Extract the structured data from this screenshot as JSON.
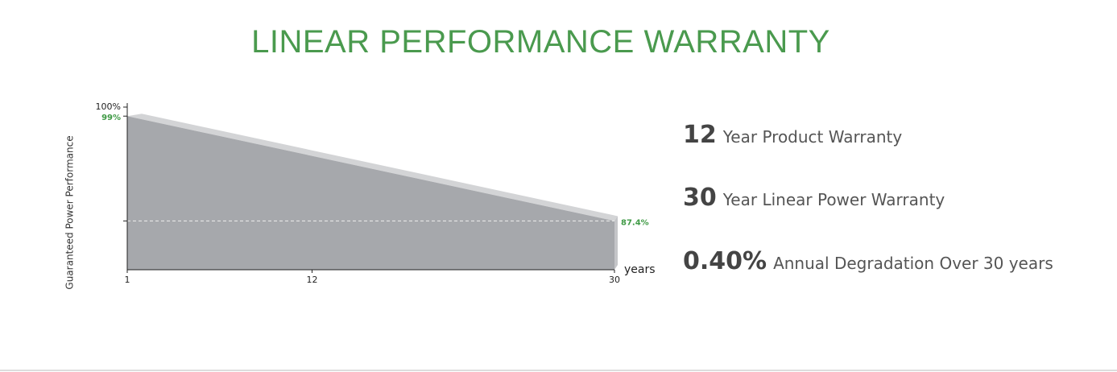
{
  "title": "LINEAR PERFORMANCE WARRANTY",
  "chart_data": {
    "type": "area",
    "x": [
      1,
      30
    ],
    "values": [
      99,
      87.4
    ],
    "value_labels": [
      "99%",
      "87.4%"
    ],
    "color": "#a6a8ac",
    "label_color": "#3f9a45",
    "xlim": [
      1,
      30
    ],
    "xticks": [
      1,
      12,
      30
    ],
    "ylim": [
      82,
      100
    ],
    "yticks": [
      {
        "value": 100,
        "label": "100%"
      }
    ],
    "x_label": "years",
    "y_label": "Guaranteed Power Performance"
  },
  "features": [
    {
      "number": "12",
      "text": "Year Product Warranty"
    },
    {
      "number": "30",
      "text": "Year Linear Power Warranty"
    },
    {
      "number": "0.40%",
      "text": "Annual Degradation Over 30 years"
    }
  ]
}
